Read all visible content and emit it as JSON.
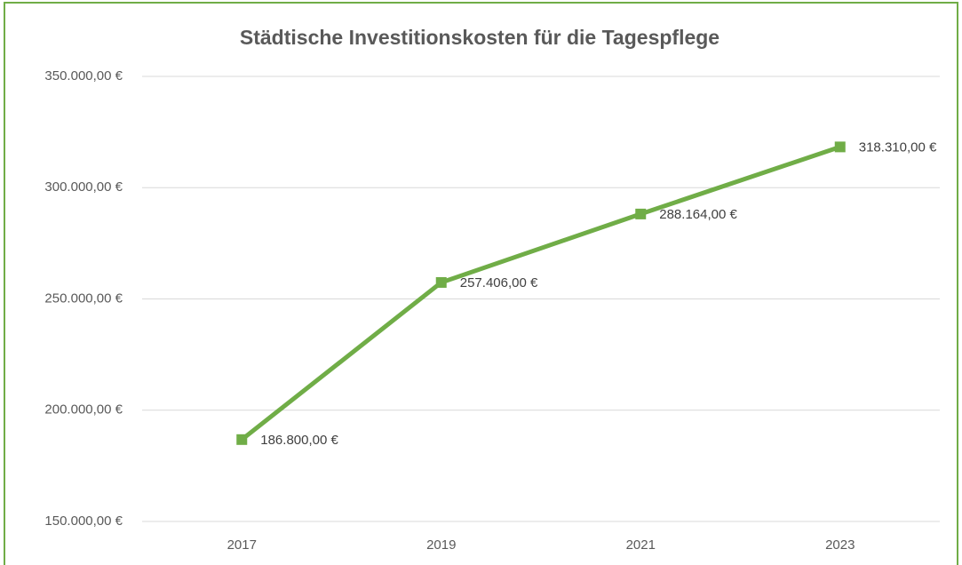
{
  "chart_data": {
    "type": "line",
    "title": "Städtische Investitionskosten für die Tagespflege",
    "categories": [
      "2017",
      "2019",
      "2021",
      "2023"
    ],
    "values": [
      186800,
      257406,
      288164,
      318310
    ],
    "value_labels": [
      "186.800,00 €",
      "257.406,00 €",
      "288.164,00 €",
      "318.310,00 €"
    ],
    "color": "#70ad47",
    "ylim": [
      150000,
      350000
    ],
    "yticks": [
      {
        "value": 150000,
        "label": "150.000,00 €"
      },
      {
        "value": 200000,
        "label": "200.000,00 €"
      },
      {
        "value": 250000,
        "label": "250.000,00 €"
      },
      {
        "value": 300000,
        "label": "300.000,00 €"
      },
      {
        "value": 350000,
        "label": "350.000,00 €"
      }
    ],
    "grid": true
  }
}
